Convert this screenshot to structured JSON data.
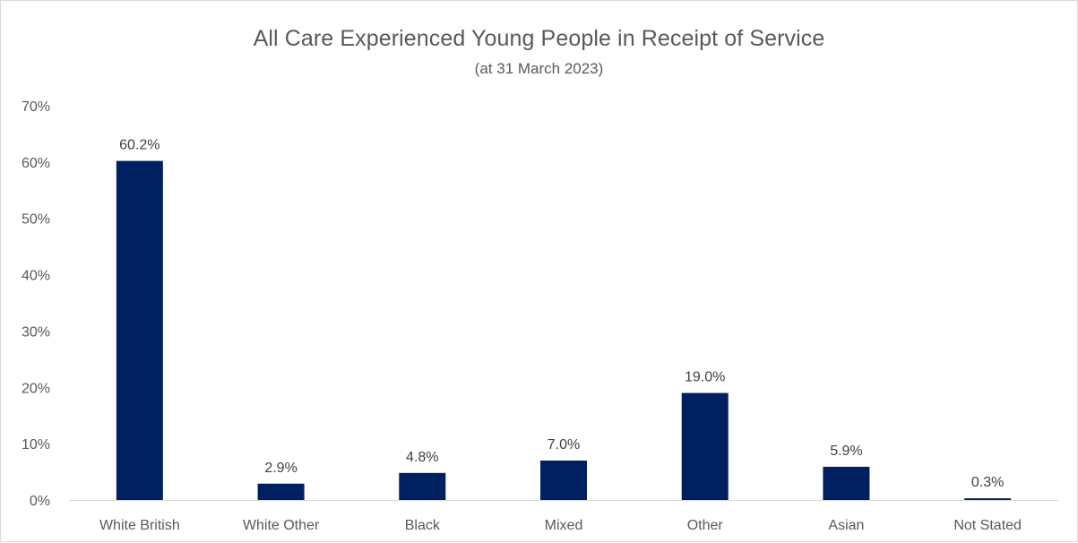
{
  "chart_data": {
    "type": "bar",
    "title": "All Care Experienced Young People in Receipt of Service",
    "subtitle": "(at 31 March 2023)",
    "categories": [
      "White British",
      "White Other",
      "Black",
      "Mixed",
      "Other",
      "Asian",
      "Not Stated"
    ],
    "values": [
      60.2,
      2.9,
      4.8,
      7.0,
      19.0,
      5.9,
      0.3
    ],
    "data_labels": [
      "60.2%",
      "2.9%",
      "4.8%",
      "7.0%",
      "19.0%",
      "5.9%",
      "0.3%"
    ],
    "xlabel": "",
    "ylabel": "",
    "ylim": [
      0,
      70
    ],
    "y_ticks": [
      0,
      10,
      20,
      30,
      40,
      50,
      60,
      70
    ],
    "y_tick_labels": [
      "0%",
      "10%",
      "20%",
      "30%",
      "40%",
      "50%",
      "60%",
      "70%"
    ],
    "grid": false,
    "legend": "none",
    "bar_color": "#002060"
  }
}
